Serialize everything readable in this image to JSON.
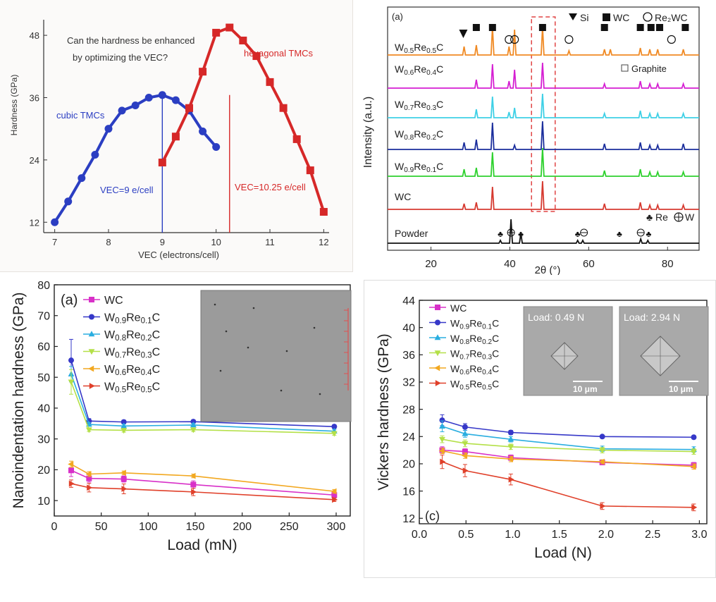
{
  "chart_data": [
    {
      "type": "line",
      "title": "",
      "annotation": "Can the hardness be enhanced by optimizing the VEC?",
      "annotation_lines": [
        "Can the hardness be enhanced",
        "by optimizing the VEC?"
      ],
      "xlabel": "VEC (electrons/cell)",
      "ylabel": "Hardness (GPa)",
      "xlim": [
        6.9,
        12.1
      ],
      "ylim": [
        10,
        51
      ],
      "xticks": [
        7,
        8,
        9,
        10,
        11,
        12
      ],
      "yticks": [
        12,
        24,
        36,
        48
      ],
      "series": [
        {
          "name": "cubic TMCs",
          "color": "#2b3ec2",
          "marker": "circle",
          "x": [
            7.0,
            7.25,
            7.5,
            7.75,
            8.0,
            8.25,
            8.5,
            8.75,
            9.0,
            9.25,
            9.5,
            9.75,
            10.0
          ],
          "y": [
            12.0,
            16.0,
            20.5,
            25.0,
            30.0,
            33.5,
            34.5,
            36.0,
            36.5,
            35.5,
            33.5,
            29.5,
            26.5
          ]
        },
        {
          "name": "hexagonal TMCs",
          "color": "#d62828",
          "marker": "square",
          "x": [
            9.0,
            9.25,
            9.5,
            9.75,
            10.0,
            10.25,
            10.5,
            10.75,
            11.0,
            11.25,
            11.5,
            11.75,
            12.0
          ],
          "y": [
            23.5,
            28.5,
            34.0,
            41.0,
            48.5,
            49.5,
            47.0,
            44.0,
            39.0,
            34.0,
            28.0,
            22.0,
            14.0
          ]
        }
      ],
      "vlines": [
        {
          "x": 9.0,
          "label": "VEC=9 e/cell",
          "color": "#2b3ec2"
        },
        {
          "x": 10.25,
          "label": "VEC=10.25 e/cell",
          "color": "#d62828"
        }
      ]
    },
    {
      "type": "line",
      "panel_label": "(a)",
      "xlabel": "2θ (°)",
      "ylabel": "Intensity (a.u.)",
      "xlim": [
        9,
        88
      ],
      "xticks": [
        20,
        40,
        60,
        80
      ],
      "yticks": [],
      "legend": [
        "Si",
        "WC",
        "Re₂WC",
        "Graphite",
        "Re",
        "W"
      ],
      "highlight_region_2theta": [
        45.5,
        51.5
      ],
      "series": [
        {
          "name": "W₀.₅Re₀.₅C",
          "sub": [
            "W",
            "0.5",
            "Re",
            "0.5",
            "C"
          ],
          "color": "#f08a24",
          "peaks": [
            [
              28.4,
              12
            ],
            [
              31.5,
              14
            ],
            [
              35.6,
              40
            ],
            [
              39.8,
              12
            ],
            [
              41.2,
              36
            ],
            [
              48.3,
              40
            ],
            [
              55.0,
              6
            ],
            [
              64.0,
              8
            ],
            [
              65.5,
              8
            ],
            [
              73.1,
              10
            ],
            [
              75.5,
              8
            ],
            [
              77.5,
              8
            ],
            [
              84.0,
              8
            ]
          ]
        },
        {
          "name": "W₀.₆Re₀.₄C",
          "sub": [
            "W",
            "0.6",
            "Re",
            "0.4",
            "C"
          ],
          "color": "#d51fd2",
          "peaks": [
            [
              31.5,
              12
            ],
            [
              35.6,
              34
            ],
            [
              39.8,
              10
            ],
            [
              41.2,
              26
            ],
            [
              48.3,
              36
            ],
            [
              64.0,
              6
            ],
            [
              73.1,
              10
            ],
            [
              75.5,
              6
            ],
            [
              77.5,
              6
            ],
            [
              84.0,
              6
            ]
          ]
        },
        {
          "name": "W₀.₇Re₀.₃C",
          "sub": [
            "W",
            "0.7",
            "Re",
            "0.3",
            "C"
          ],
          "color": "#3ed0e6",
          "peaks": [
            [
              31.5,
              12
            ],
            [
              35.6,
              30
            ],
            [
              39.8,
              8
            ],
            [
              41.2,
              14
            ],
            [
              48.3,
              34
            ],
            [
              64.0,
              6
            ],
            [
              73.1,
              10
            ],
            [
              75.5,
              6
            ],
            [
              77.5,
              6
            ],
            [
              84.0,
              6
            ]
          ]
        },
        {
          "name": "W₀.₈Re₀.₂C",
          "sub": [
            "W",
            "0.8",
            "Re",
            "0.2",
            "C"
          ],
          "color": "#1b2e9c",
          "peaks": [
            [
              28.4,
              10
            ],
            [
              31.5,
              14
            ],
            [
              35.6,
              38
            ],
            [
              41.2,
              6
            ],
            [
              48.3,
              40
            ],
            [
              64.0,
              8
            ],
            [
              73.1,
              10
            ],
            [
              75.5,
              6
            ],
            [
              77.5,
              6
            ],
            [
              84.0,
              8
            ]
          ]
        },
        {
          "name": "W₀.₉Re₀.₁C",
          "sub": [
            "W",
            "0.9",
            "Re",
            "0.1",
            "C"
          ],
          "color": "#2ed12e",
          "peaks": [
            [
              28.4,
              10
            ],
            [
              31.5,
              12
            ],
            [
              35.6,
              34
            ],
            [
              48.3,
              40
            ],
            [
              64.0,
              8
            ],
            [
              73.1,
              10
            ],
            [
              75.5,
              6
            ],
            [
              77.5,
              6
            ],
            [
              84.0,
              6
            ]
          ]
        },
        {
          "name": "WC",
          "sub": [
            "WC",
            "",
            "",
            "",
            ""
          ],
          "color": "#d63a30",
          "peaks": [
            [
              28.4,
              8
            ],
            [
              31.5,
              10
            ],
            [
              35.6,
              32
            ],
            [
              48.3,
              40
            ],
            [
              64.0,
              8
            ],
            [
              73.1,
              10
            ],
            [
              75.5,
              6
            ],
            [
              77.5,
              6
            ],
            [
              84.0,
              6
            ]
          ]
        },
        {
          "name": "Powder",
          "sub": [
            "Powder",
            "",
            "",
            "",
            ""
          ],
          "color": "#111111",
          "peaks": [
            [
              37.6,
              4
            ],
            [
              40.3,
              34
            ],
            [
              42.8,
              14
            ],
            [
              57.2,
              4
            ],
            [
              58.5,
              4
            ],
            [
              73.2,
              6
            ],
            [
              75.0,
              4
            ]
          ]
        }
      ]
    },
    {
      "type": "line",
      "panel_label": "(a)",
      "xlabel": "Load (mN)",
      "ylabel": "Nanoindentation hardness (GPa)",
      "xlim": [
        0,
        315
      ],
      "ylim": [
        5,
        80
      ],
      "xticks": [
        0,
        50,
        100,
        150,
        200,
        250,
        300
      ],
      "yticks": [
        10,
        20,
        30,
        40,
        50,
        60,
        70,
        80
      ],
      "legend_position": "top-left",
      "series": [
        {
          "name": "WC",
          "sub": [
            "WC",
            "",
            "",
            "",
            ""
          ],
          "color": "#d830c8",
          "marker": "square",
          "x": [
            18,
            37,
            74,
            148,
            298
          ],
          "y": [
            19.8,
            17.2,
            17.0,
            15.2,
            11.8
          ],
          "err": [
            2.0,
            1.2,
            1.0,
            1.2,
            1.0
          ]
        },
        {
          "name": "W₀.₉Re₀.₁C",
          "sub": [
            "W",
            "0.9",
            "Re",
            "0.1",
            "C"
          ],
          "color": "#3638c8",
          "marker": "circle",
          "x": [
            18,
            37,
            74,
            148,
            298
          ],
          "y": [
            55.5,
            35.8,
            35.5,
            35.6,
            34.0
          ],
          "err": [
            6.8,
            0.8,
            0.6,
            0.6,
            0.6
          ]
        },
        {
          "name": "W₀.₈Re₀.₂C",
          "sub": [
            "W",
            "0.8",
            "Re",
            "0.2",
            "C"
          ],
          "color": "#2aaee0",
          "marker": "tri-up",
          "x": [
            18,
            37,
            74,
            148,
            298
          ],
          "y": [
            51.0,
            34.7,
            34.2,
            34.5,
            32.5
          ],
          "err": [
            2.5,
            0.6,
            0.6,
            0.6,
            0.6
          ]
        },
        {
          "name": "W₀.₇Re₀.₃C",
          "sub": [
            "W",
            "0.7",
            "Re",
            "0.3",
            "C"
          ],
          "color": "#b4e048",
          "marker": "tri-down",
          "x": [
            18,
            37,
            74,
            148,
            298
          ],
          "y": [
            48.5,
            33.0,
            32.8,
            33.0,
            31.8
          ],
          "err": [
            4.0,
            0.6,
            0.6,
            0.6,
            0.6
          ]
        },
        {
          "name": "W₀.₆Re₀.₄C",
          "sub": [
            "W",
            "0.6",
            "Re",
            "0.4",
            "C"
          ],
          "color": "#f2a820",
          "marker": "tri-left",
          "x": [
            18,
            37,
            74,
            148,
            298
          ],
          "y": [
            21.8,
            18.6,
            19.0,
            18.0,
            13.0
          ],
          "err": [
            1.0,
            0.8,
            0.6,
            0.6,
            0.6
          ]
        },
        {
          "name": "W₀.₅Re₀.₅C",
          "sub": [
            "W",
            "0.5",
            "Re",
            "0.5",
            "C"
          ],
          "color": "#e0402a",
          "marker": "tri-right",
          "x": [
            18,
            37,
            74,
            148,
            298
          ],
          "y": [
            15.5,
            14.2,
            13.8,
            12.8,
            10.3
          ],
          "err": [
            1.2,
            1.4,
            1.6,
            1.2,
            0.6
          ]
        }
      ]
    },
    {
      "type": "line",
      "panel_label": "(c)",
      "xlabel": "Load (N)",
      "ylabel": "Vickers hardness (GPa)",
      "xlim": [
        0,
        3.08
      ],
      "ylim": [
        11.2,
        44
      ],
      "xticks": [
        0.0,
        0.5,
        1.0,
        1.5,
        2.0,
        2.5,
        3.0
      ],
      "xtick_labels": [
        "0.0",
        "0.5",
        "1.0",
        "1.5",
        "2.0",
        "2.5",
        "3.0"
      ],
      "yticks": [
        12,
        16,
        20,
        24,
        28,
        32,
        36,
        40,
        44
      ],
      "legend_position": "top-left",
      "insets": [
        {
          "label": "Load: 0.49 N",
          "scale": "10 μm"
        },
        {
          "label": "Load: 2.94 N",
          "scale": "10 μm"
        }
      ],
      "series": [
        {
          "name": "WC",
          "sub": [
            "WC",
            "",
            "",
            "",
            ""
          ],
          "color": "#d830c8",
          "marker": "square",
          "x": [
            0.245,
            0.49,
            0.98,
            1.96,
            2.94
          ],
          "y": [
            22.0,
            21.8,
            20.9,
            20.2,
            19.8
          ],
          "err": [
            0.5,
            0.4,
            0.4,
            0.3,
            0.4
          ]
        },
        {
          "name": "W₀.₉Re₀.₁C",
          "sub": [
            "W",
            "0.9",
            "Re",
            "0.1",
            "C"
          ],
          "color": "#3638c8",
          "marker": "circle",
          "x": [
            0.245,
            0.49,
            0.98,
            1.96,
            2.94
          ],
          "y": [
            26.4,
            25.4,
            24.6,
            24.0,
            23.9
          ],
          "err": [
            0.8,
            0.5,
            0.3,
            0.2,
            0.2
          ]
        },
        {
          "name": "W₀.₈Re₀.₂C",
          "sub": [
            "W",
            "0.8",
            "Re",
            "0.2",
            "C"
          ],
          "color": "#2aaee0",
          "marker": "tri-up",
          "x": [
            0.245,
            0.49,
            0.98,
            1.96,
            2.94
          ],
          "y": [
            25.5,
            24.4,
            23.6,
            22.2,
            22.1
          ],
          "err": [
            0.8,
            0.5,
            0.4,
            0.4,
            0.4
          ]
        },
        {
          "name": "W₀.₇Re₀.₃C",
          "sub": [
            "W",
            "0.7",
            "Re",
            "0.3",
            "C"
          ],
          "color": "#b4e048",
          "marker": "tri-down",
          "x": [
            0.245,
            0.49,
            0.98,
            1.96,
            2.94
          ],
          "y": [
            23.6,
            23.0,
            22.5,
            22.0,
            21.8
          ],
          "err": [
            0.5,
            0.5,
            0.4,
            0.4,
            0.4
          ]
        },
        {
          "name": "W₀.₆Re₀.₄C",
          "sub": [
            "W",
            "0.6",
            "Re",
            "0.4",
            "C"
          ],
          "color": "#f2a820",
          "marker": "tri-left",
          "x": [
            0.245,
            0.49,
            0.98,
            1.96,
            2.94
          ],
          "y": [
            21.9,
            21.2,
            20.7,
            20.3,
            19.6
          ],
          "err": [
            0.4,
            0.4,
            0.4,
            0.3,
            0.4
          ]
        },
        {
          "name": "W₀.₅Re₀.₅C",
          "sub": [
            "W",
            "0.5",
            "Re",
            "0.5",
            "C"
          ],
          "color": "#e0402a",
          "marker": "tri-right",
          "x": [
            0.245,
            0.49,
            0.98,
            1.96,
            2.94
          ],
          "y": [
            20.3,
            19.0,
            17.7,
            13.8,
            13.6
          ],
          "err": [
            1.0,
            0.9,
            0.8,
            0.5,
            0.5
          ]
        }
      ]
    }
  ]
}
